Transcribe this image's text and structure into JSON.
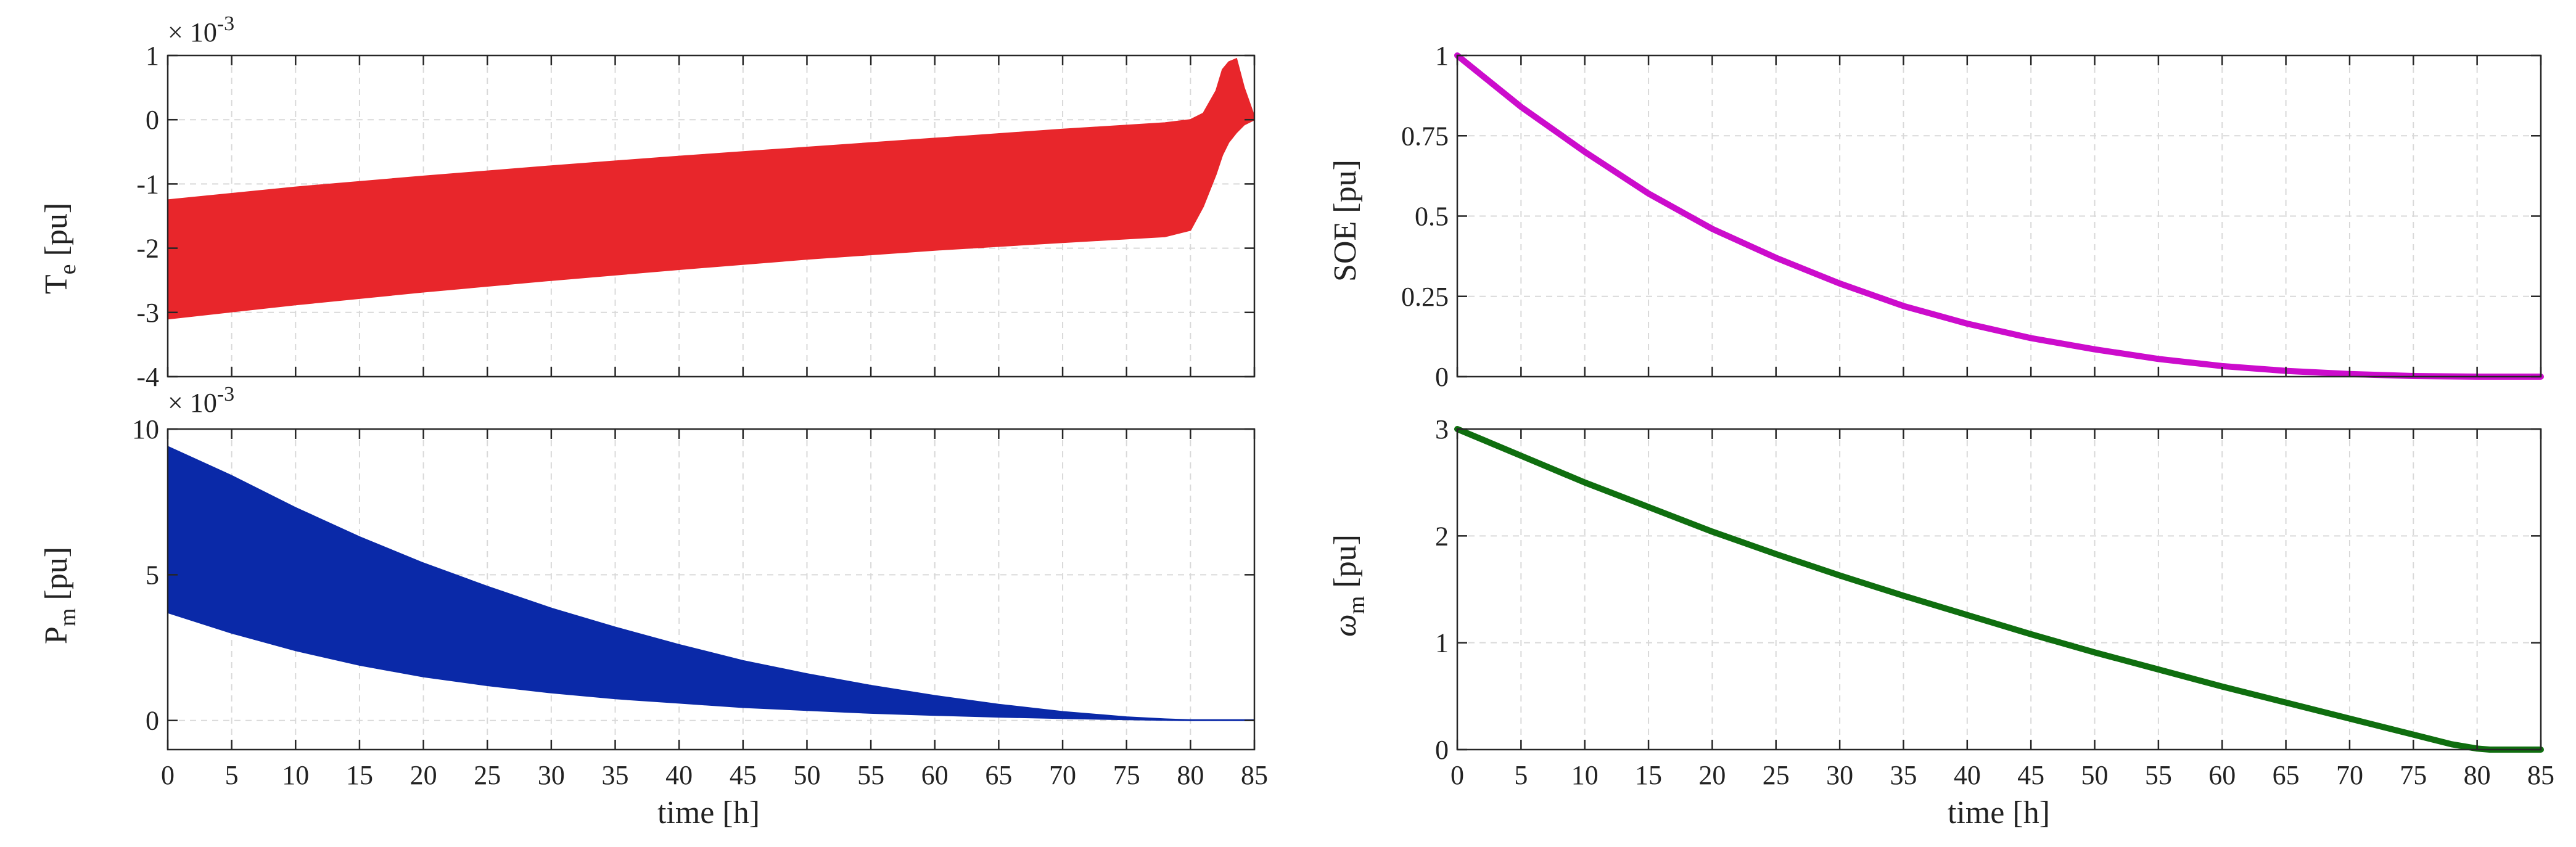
{
  "chart_data": [
    {
      "id": "te",
      "type": "area",
      "ylabel_main": "T",
      "ylabel_sub": "e",
      "ylabel_unit": " [pu]",
      "exponent_base": "× 10",
      "exponent_power": "-3",
      "xlabel": "",
      "xlim": [
        0,
        85
      ],
      "ylim": [
        -4,
        1
      ],
      "xticks": [
        0,
        5,
        10,
        15,
        20,
        25,
        30,
        35,
        40,
        45,
        50,
        55,
        60,
        65,
        70,
        75,
        80,
        85
      ],
      "xtick_labels": [],
      "yticks": [
        -4,
        -3,
        -2,
        -1,
        0,
        1
      ],
      "ytick_labels": [
        "-4",
        "-3",
        "-2",
        "-1",
        "0",
        "1"
      ],
      "color": "#e8262b",
      "envelope": {
        "x": [
          0,
          10,
          20,
          30,
          40,
          50,
          60,
          70,
          78,
          80,
          81,
          82,
          82.5,
          83,
          83.6,
          84.2,
          85
        ],
        "upper": [
          -1.25,
          -1.05,
          -0.88,
          -0.72,
          -0.57,
          -0.43,
          -0.29,
          -0.15,
          -0.05,
          0.0,
          0.1,
          0.45,
          0.78,
          0.9,
          0.95,
          0.5,
          0.05
        ],
        "lower": [
          -3.1,
          -2.88,
          -2.68,
          -2.5,
          -2.33,
          -2.17,
          -2.03,
          -1.91,
          -1.82,
          -1.72,
          -1.35,
          -0.85,
          -0.55,
          -0.35,
          -0.2,
          -0.08,
          0.0
        ]
      }
    },
    {
      "id": "pm",
      "type": "area",
      "ylabel_main": "P",
      "ylabel_sub": "m",
      "ylabel_unit": " [pu]",
      "exponent_base": "× 10",
      "exponent_power": "-3",
      "xlabel": "time [h]",
      "xlim": [
        0,
        85
      ],
      "ylim": [
        -1,
        10
      ],
      "xticks": [
        0,
        5,
        10,
        15,
        20,
        25,
        30,
        35,
        40,
        45,
        50,
        55,
        60,
        65,
        70,
        75,
        80,
        85
      ],
      "xtick_labels": [
        "0",
        "5",
        "10",
        "15",
        "20",
        "25",
        "30",
        "35",
        "40",
        "45",
        "50",
        "55",
        "60",
        "65",
        "70",
        "75",
        "80",
        "85"
      ],
      "yticks": [
        0,
        5,
        10
      ],
      "ytick_labels": [
        "0",
        "5",
        "10"
      ],
      "color": "#0a29a8",
      "envelope": {
        "x": [
          0,
          5,
          10,
          15,
          20,
          25,
          30,
          35,
          40,
          45,
          50,
          55,
          60,
          65,
          70,
          75,
          78,
          80,
          85
        ],
        "upper": [
          9.4,
          8.4,
          7.3,
          6.3,
          5.4,
          4.6,
          3.85,
          3.2,
          2.6,
          2.05,
          1.6,
          1.2,
          0.85,
          0.55,
          0.3,
          0.12,
          0.05,
          0.02,
          0.02
        ],
        "lower": [
          3.7,
          3.0,
          2.4,
          1.9,
          1.5,
          1.2,
          0.95,
          0.75,
          0.6,
          0.45,
          0.35,
          0.25,
          0.18,
          0.12,
          0.07,
          0.03,
          0.01,
          0.0,
          0.0
        ]
      }
    },
    {
      "id": "soe",
      "type": "line",
      "ylabel_main": "SOE [pu]",
      "ylabel_sub": "",
      "ylabel_unit": "",
      "xlabel": "",
      "xlim": [
        0,
        85
      ],
      "ylim": [
        0,
        1
      ],
      "xticks": [
        0,
        5,
        10,
        15,
        20,
        25,
        30,
        35,
        40,
        45,
        50,
        55,
        60,
        65,
        70,
        75,
        80,
        85
      ],
      "xtick_labels": [],
      "yticks": [
        0,
        0.25,
        0.5,
        0.75,
        1
      ],
      "ytick_labels": [
        "0",
        "0.25",
        "0.5",
        "0.75",
        "1"
      ],
      "color": "#cc0ccc",
      "series": [
        {
          "name": "SOE",
          "x": [
            0,
            5,
            10,
            15,
            20,
            25,
            30,
            35,
            40,
            45,
            50,
            55,
            60,
            65,
            70,
            75,
            80,
            85
          ],
          "y": [
            1.0,
            0.84,
            0.7,
            0.57,
            0.46,
            0.37,
            0.29,
            0.22,
            0.165,
            0.12,
            0.085,
            0.055,
            0.033,
            0.018,
            0.008,
            0.002,
            0.0,
            0.0
          ]
        }
      ]
    },
    {
      "id": "wm",
      "type": "line",
      "ylabel_main": "ω",
      "ylabel_sub": "m",
      "ylabel_unit": " [pu]",
      "xlabel": "time [h]",
      "xlim": [
        0,
        85
      ],
      "ylim": [
        0,
        3
      ],
      "xticks": [
        0,
        5,
        10,
        15,
        20,
        25,
        30,
        35,
        40,
        45,
        50,
        55,
        60,
        65,
        70,
        75,
        80,
        85
      ],
      "xtick_labels": [
        "0",
        "5",
        "10",
        "15",
        "20",
        "25",
        "30",
        "35",
        "40",
        "45",
        "50",
        "55",
        "60",
        "65",
        "70",
        "75",
        "80",
        "85"
      ],
      "yticks": [
        0,
        1,
        2,
        3
      ],
      "ytick_labels": [
        "0",
        "1",
        "2",
        "3"
      ],
      "color": "#0f6e0f",
      "series": [
        {
          "name": "omega_m",
          "x": [
            0,
            5,
            10,
            15,
            20,
            25,
            30,
            35,
            40,
            45,
            50,
            55,
            60,
            65,
            70,
            75,
            78,
            80,
            81,
            85
          ],
          "y": [
            3.0,
            2.75,
            2.5,
            2.27,
            2.04,
            1.83,
            1.63,
            1.44,
            1.26,
            1.08,
            0.91,
            0.75,
            0.59,
            0.44,
            0.29,
            0.14,
            0.05,
            0.01,
            0.0,
            0.0
          ]
        }
      ]
    }
  ]
}
